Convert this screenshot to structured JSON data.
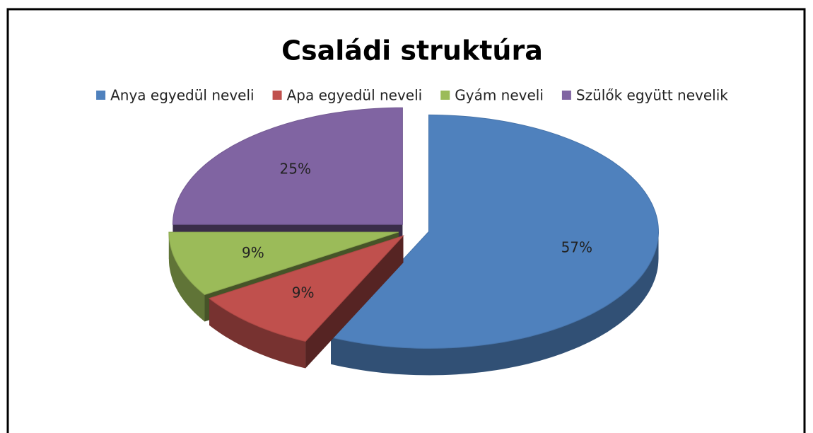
{
  "chart_data": {
    "type": "pie",
    "title": "Családi struktúra",
    "categories": [
      "Anya egyedül neveli",
      "Apa egyedül neveli",
      "Gyám neveli",
      "Szülők együtt nevelik"
    ],
    "values": [
      57,
      9,
      9,
      25
    ],
    "value_labels": [
      "57%",
      "9%",
      "9%",
      "25%"
    ],
    "colors": [
      "#4f81bd",
      "#c0504d",
      "#9bbb59",
      "#8064a2"
    ],
    "legend": "top",
    "exploded": true
  }
}
